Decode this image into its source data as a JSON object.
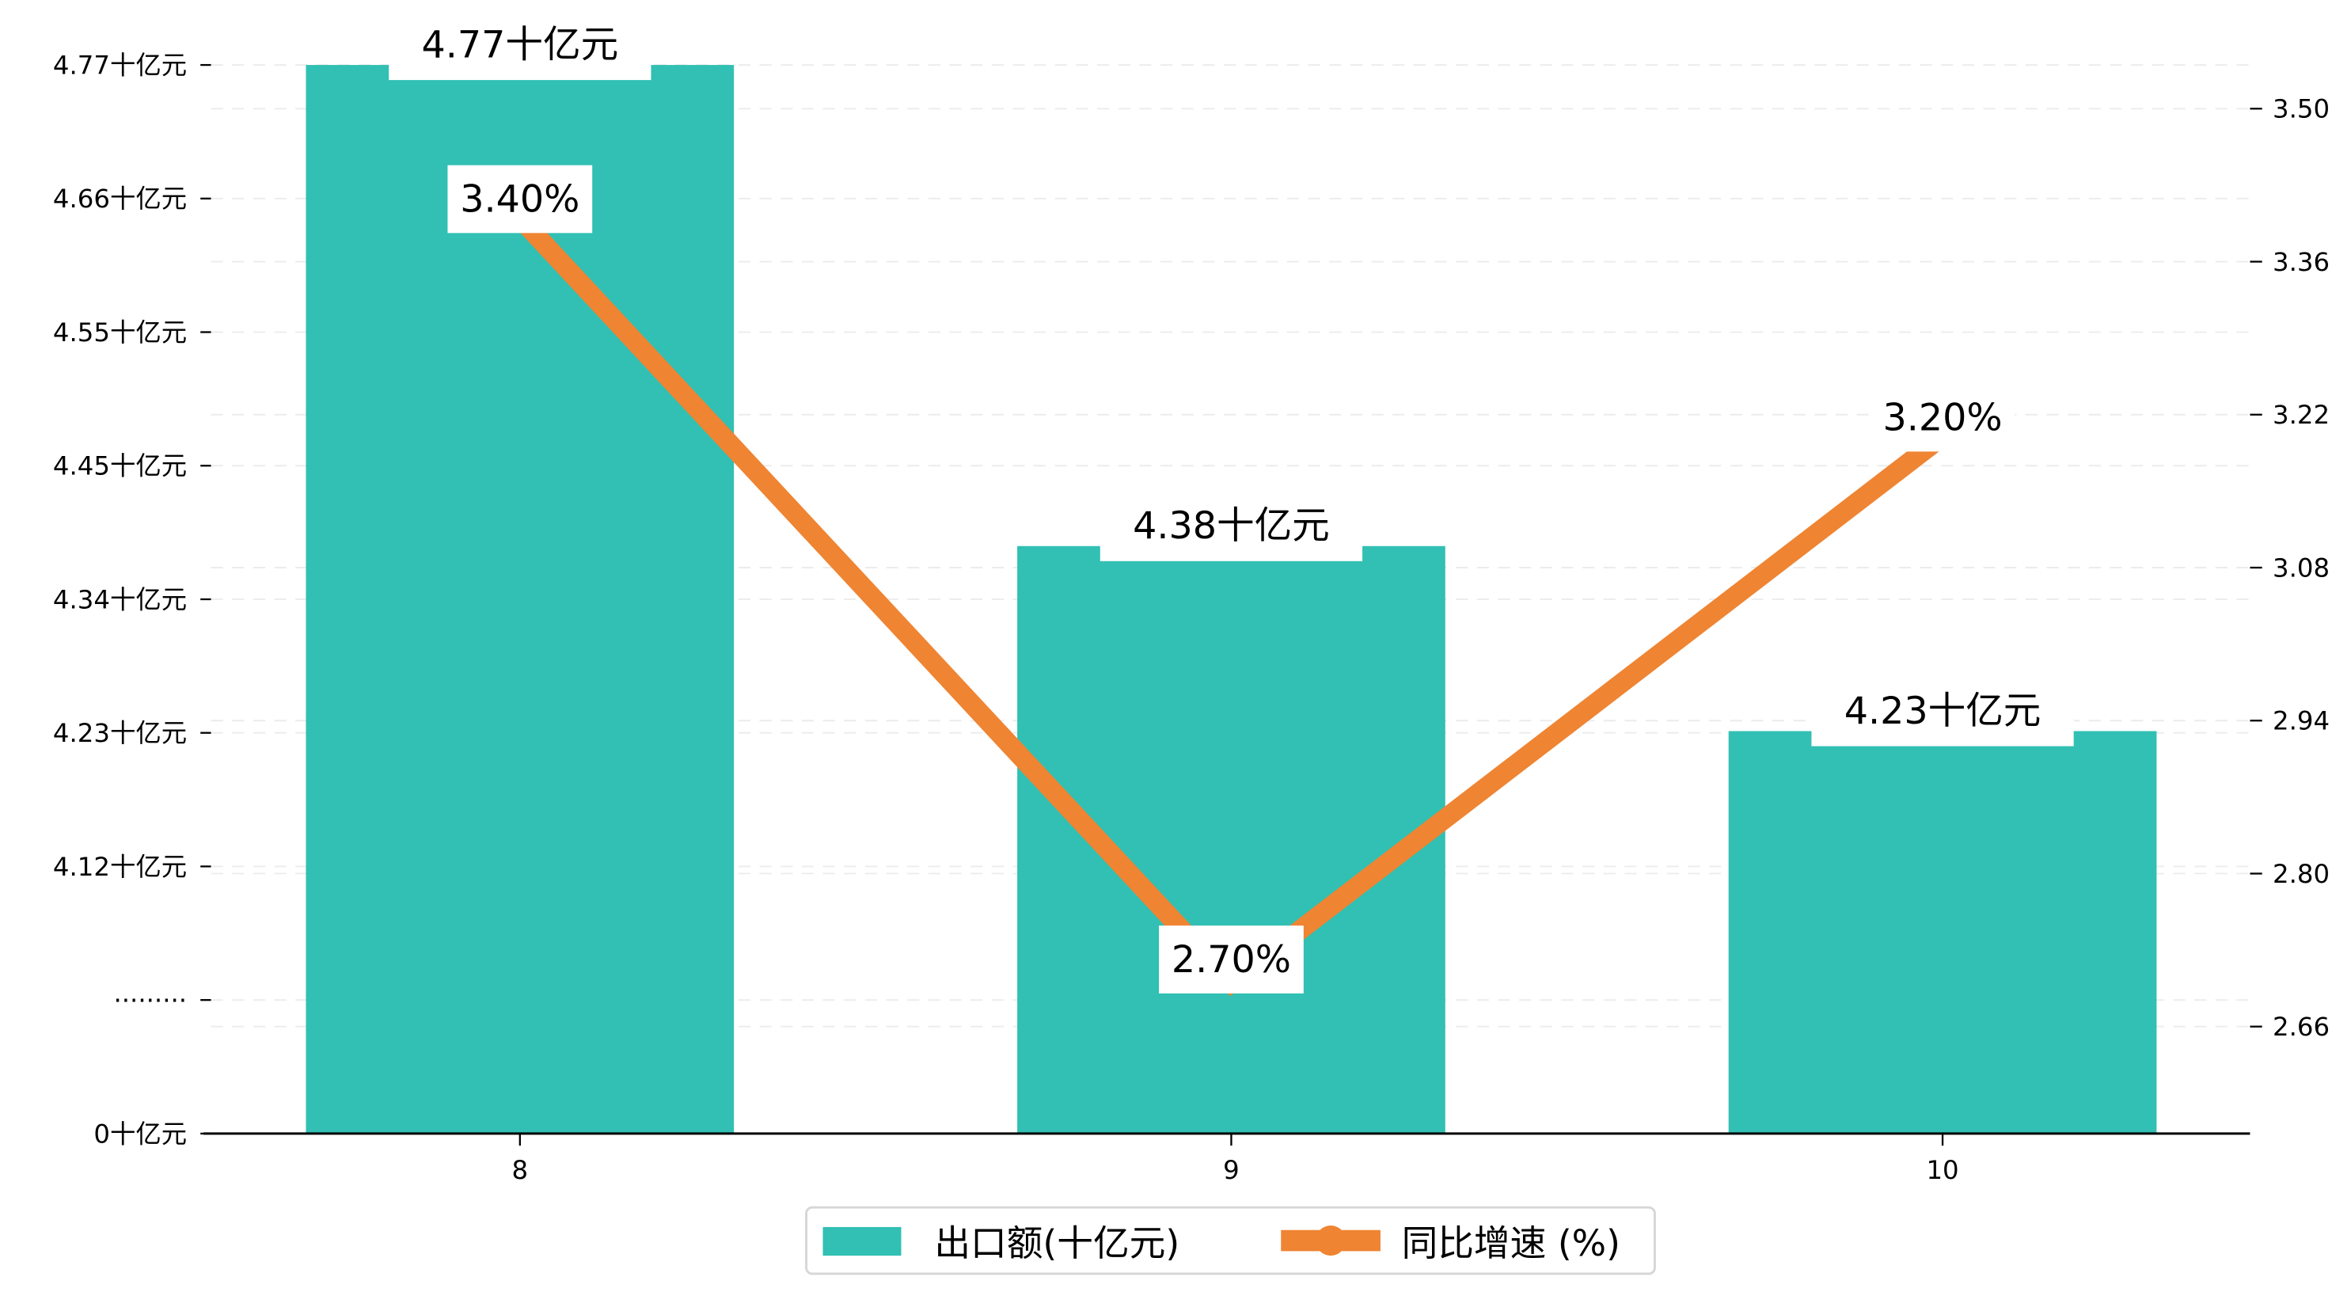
{
  "chart_data": {
    "type": "bar",
    "categories": [
      "8",
      "9",
      "10"
    ],
    "series": [
      {
        "name": "出口额(十亿元)",
        "type": "bar",
        "axis": "left",
        "color": "#31C0B3",
        "values": [
          4.77,
          4.38,
          4.23
        ],
        "labels": [
          "4.77十亿元",
          "4.38十亿元",
          "4.23十亿元"
        ]
      },
      {
        "name": "同比增速 (%)",
        "type": "line",
        "axis": "right",
        "color": "#EF8432",
        "values": [
          3.4,
          2.7,
          3.2
        ],
        "labels": [
          "3.40%",
          "2.70%",
          "3.20%"
        ]
      }
    ],
    "left_axis": {
      "tick_labels": [
        "0十亿元",
        "·········",
        "4.12十亿元",
        "4.23十亿元",
        "4.34十亿元",
        "4.45十亿元",
        "4.55十亿元",
        "4.66十亿元",
        "4.77十亿元"
      ],
      "broken": true,
      "range": [
        4.12,
        4.77
      ]
    },
    "right_axis": {
      "tick_labels": [
        "2.66",
        "2.80",
        "2.94",
        "3.08",
        "3.22",
        "3.36",
        "3.50"
      ],
      "range": [
        2.66,
        3.5
      ]
    },
    "grid": "horizontal dashed",
    "legend": {
      "placement": "bottom-center",
      "entries": [
        "出口额(十亿元)",
        "同比增速 (%)"
      ]
    },
    "title": "",
    "xlabel": "",
    "ylabel": ""
  }
}
